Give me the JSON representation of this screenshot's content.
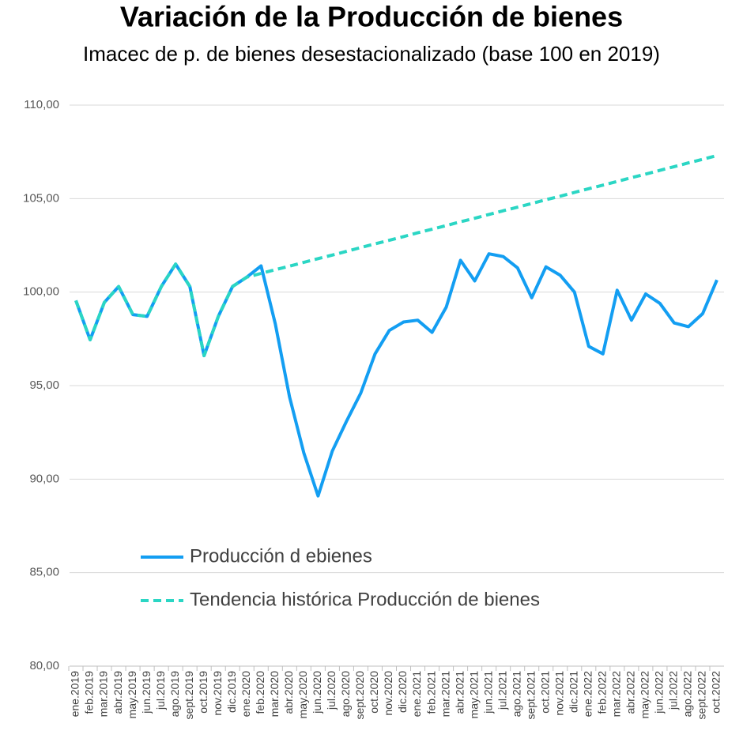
{
  "chart_data": {
    "type": "line",
    "title": "Variación de la Producción de bienes",
    "subtitle": "Imacec de p. de bienes desestacionalizado (base 100 en 2019)",
    "categories": [
      "ene.2019",
      "feb.2019",
      "mar.2019",
      "abr.2019",
      "may.2019",
      "jun.2019",
      "jul.2019",
      "ago.2019",
      "sept.2019",
      "oct.2019",
      "nov.2019",
      "dic.2019",
      "ene.2020",
      "feb.2020",
      "mar.2020",
      "abr.2020",
      "may.2020",
      "jun.2020",
      "jul.2020",
      "ago.2020",
      "sept.2020",
      "oct.2020",
      "nov.2020",
      "dic.2020",
      "ene.2021",
      "feb.2021",
      "mar.2021",
      "abr.2021",
      "may.2021",
      "jun.2021",
      "jul.2021",
      "ago.2021",
      "sept.2021",
      "oct.2021",
      "nov.2021",
      "dic.2021",
      "ene.2022",
      "feb.2022",
      "mar.2022",
      "abr.2022",
      "may.2022",
      "jun.2022",
      "jul.2022",
      "ago.2022",
      "sept.2022",
      "oct.2022"
    ],
    "series": [
      {
        "name": "Producción d ebienes",
        "color": "#139ef2",
        "dash": false,
        "values": [
          99.55,
          97.45,
          99.45,
          100.3,
          98.8,
          98.7,
          100.3,
          101.5,
          100.3,
          96.6,
          98.7,
          100.3,
          100.8,
          101.4,
          98.3,
          94.4,
          91.4,
          89.1,
          91.5,
          93.1,
          94.6,
          96.7,
          97.95,
          98.4,
          98.5,
          97.85,
          99.2,
          101.7,
          100.6,
          102.05,
          101.9,
          101.3,
          99.7,
          101.35,
          100.9,
          100.0,
          97.1,
          96.7,
          100.1,
          98.5,
          99.9,
          99.4,
          98.35,
          98.15,
          98.85,
          100.65
        ]
      },
      {
        "name": "Tendencia histórica Producción de bienes",
        "color": "#2bd6c4",
        "dash": true,
        "values": [
          99.55,
          97.45,
          99.45,
          100.3,
          98.8,
          98.7,
          100.3,
          101.5,
          100.3,
          96.6,
          98.7,
          100.3,
          100.8,
          101.0,
          101.2,
          101.39,
          101.59,
          101.79,
          101.98,
          102.18,
          102.38,
          102.58,
          102.77,
          102.97,
          103.17,
          103.36,
          103.56,
          103.76,
          103.95,
          104.15,
          104.35,
          104.54,
          104.74,
          104.94,
          105.13,
          105.33,
          105.53,
          105.72,
          105.92,
          106.12,
          106.31,
          106.51,
          106.71,
          106.91,
          107.1,
          107.3
        ]
      }
    ],
    "ylim": [
      80,
      110
    ],
    "yticks": [
      {
        "value": 80,
        "label": "80,00"
      },
      {
        "value": 85,
        "label": "85,00"
      },
      {
        "value": 90,
        "label": "90,00"
      },
      {
        "value": 95,
        "label": "95,00"
      },
      {
        "value": 100,
        "label": "100,00"
      },
      {
        "value": 105,
        "label": "105,00"
      },
      {
        "value": 110,
        "label": "110,00"
      }
    ],
    "grid": true,
    "legend": "lower center"
  }
}
